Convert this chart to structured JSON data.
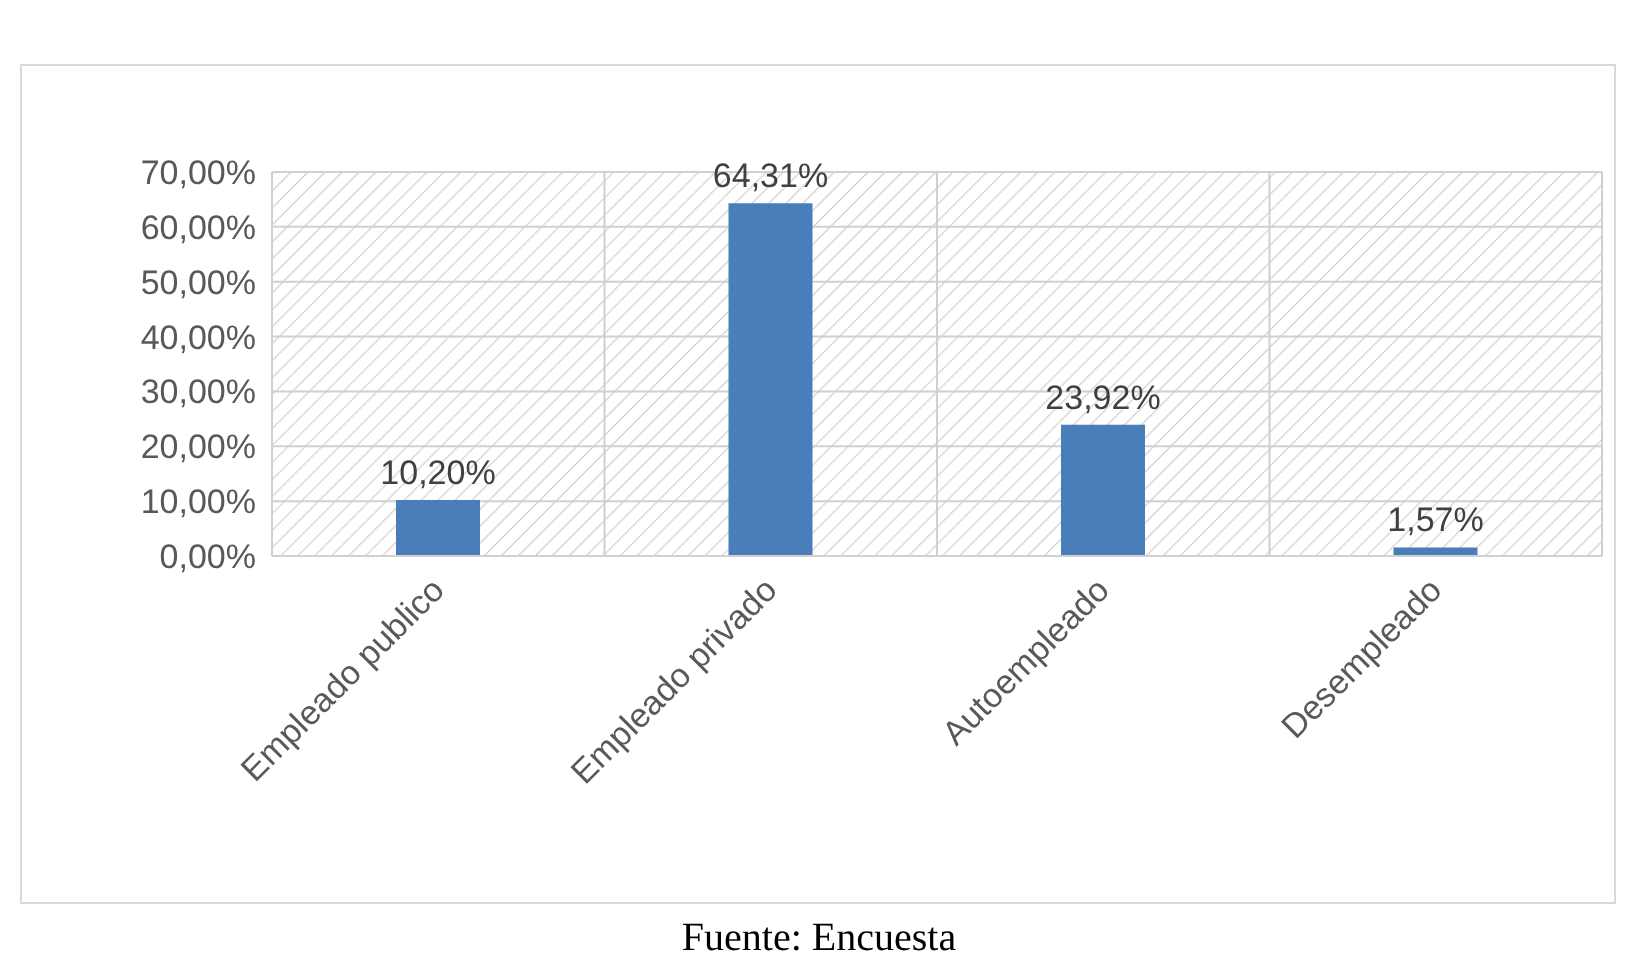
{
  "chart_data": {
    "type": "bar",
    "categories": [
      "Empleado publico",
      "Empleado privado",
      "Autoempleado",
      "Desempleado"
    ],
    "values": [
      10.2,
      64.31,
      23.92,
      1.57
    ],
    "value_labels": [
      "10,20%",
      "64,31%",
      "23,92%",
      "1,57%"
    ],
    "color": "#4a7ebb",
    "ylim": [
      0,
      70
    ],
    "yticks": [
      {
        "value": 0,
        "label": "0,00%"
      },
      {
        "value": 10,
        "label": "10,00%"
      },
      {
        "value": 20,
        "label": "20,00%"
      },
      {
        "value": 30,
        "label": "30,00%"
      },
      {
        "value": 40,
        "label": "40,00%"
      },
      {
        "value": 50,
        "label": "50,00%"
      },
      {
        "value": 60,
        "label": "60,00%"
      },
      {
        "value": 70,
        "label": "70,00%"
      }
    ],
    "grid": true,
    "annotations": [
      "Fuente: Encuesta"
    ]
  }
}
